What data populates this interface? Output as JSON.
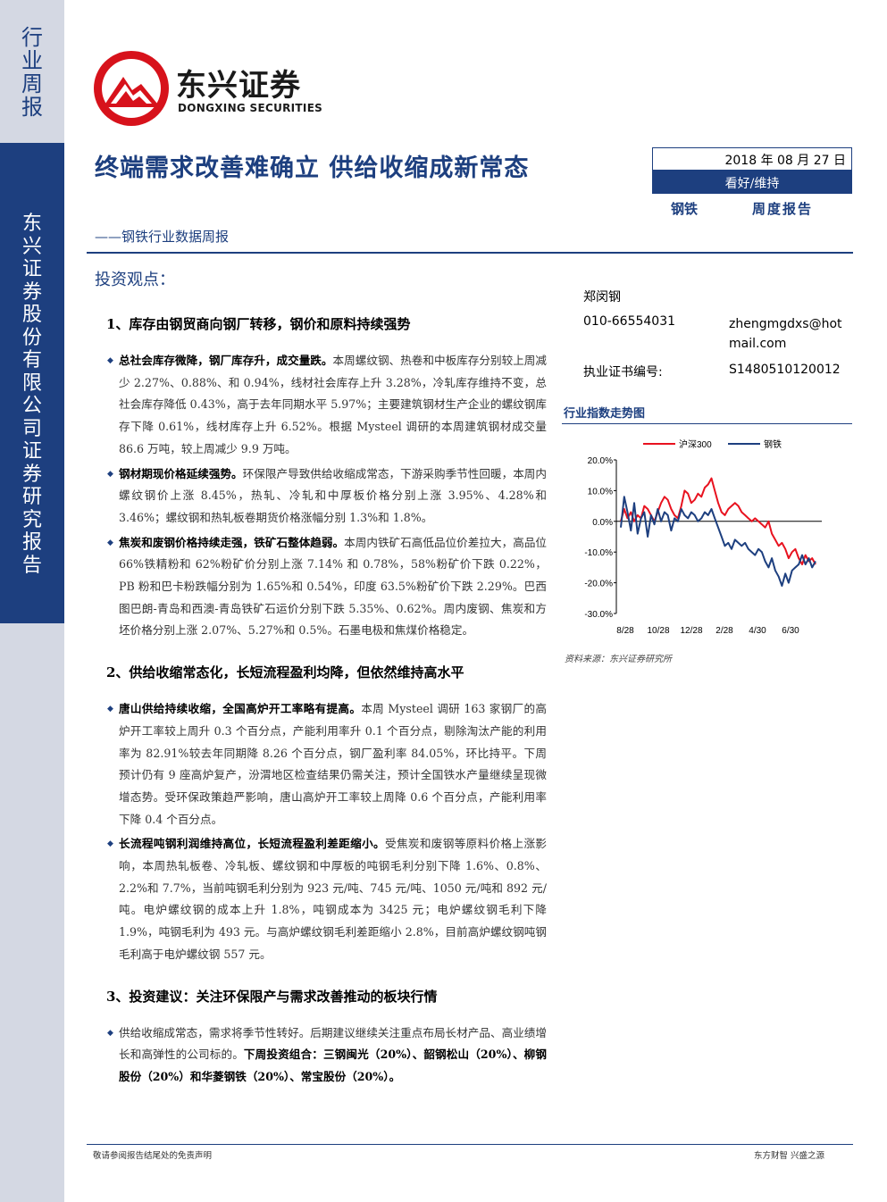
{
  "side": {
    "report_type_chars": [
      "行",
      "业",
      "周",
      "报"
    ],
    "firm_chars": [
      "东",
      "兴",
      "证",
      "券",
      "股",
      "份",
      "有",
      "限",
      "公",
      "司",
      "证",
      "券",
      "研",
      "究",
      "报",
      "告"
    ]
  },
  "logo": {
    "cn": "东兴证券",
    "en": "DONGXING SECURITIES"
  },
  "title": "终端需求改善难确立 供给收缩成新常态",
  "subtitle": "——钢铁行业数据周报",
  "date": "2018 年 08 月 27 日",
  "rating": "看好/维持",
  "industry": "钢铁",
  "report_type": "周度报告",
  "view_title": "投资观点：",
  "analyst": {
    "name": "郑闵钢",
    "phone": "010-66554031",
    "email": "zhengmgdxs@hotmail.com",
    "cert_label": "执业证书编号:",
    "cert_no": "S1480510120012"
  },
  "sections": [
    {
      "heading": "1、库存由钢贸商向钢厂转移，钢价和原料持续强势",
      "paras": [
        {
          "bold": "总社会库存微降，钢厂库存升，成交量跌。",
          "text": "本周螺纹钢、热卷和中板库存分别较上周减少 2.27%、0.88%、和 0.94%，线材社会库存上升 3.28%，冷轧库存维持不变，总社会库存降低 0.43%，高于去年同期水平 5.97%；主要建筑钢材生产企业的螺纹钢库存下降 0.61%，线材库存上升 6.52%。根据 Mysteel 调研的本周建筑钢材成交量 86.6 万吨，较上周减少 9.9 万吨。"
        },
        {
          "bold": "钢材期现价格延续强势。",
          "text": "环保限产导致供给收缩成常态，下游采购季节性回暖，本周内螺纹钢价上涨 8.45%，热轧、冷轧和中厚板价格分别上涨 3.95%、4.28%和 3.46%；螺纹钢和热轧板卷期货价格涨幅分别 1.3%和 1.8%。"
        },
        {
          "bold": "焦炭和废钢价格持续走强，铁矿石整体趋弱。",
          "text": "本周内铁矿石高低品位价差拉大，高品位 66%铁精粉和 62%粉矿价分别上涨 7.14% 和 0.78%，58%粉矿价下跌 0.22%，PB 粉和巴卡粉跌幅分别为 1.65%和 0.54%，印度 63.5%粉矿价下跌 2.29%。巴西图巴朗-青岛和西澳-青岛铁矿石运价分别下跌 5.35%、0.62%。周内废钢、焦炭和方坯价格分别上涨 2.07%、5.27%和 0.5%。石墨电极和焦煤价格稳定。"
        }
      ]
    },
    {
      "heading": "2、供给收缩常态化，长短流程盈利均降，但依然维持高水平",
      "paras": [
        {
          "bold": "唐山供给持续收缩，全国高炉开工率略有提高。",
          "text": "本周 Mysteel 调研 163 家钢厂的高炉开工率较上周升 0.3 个百分点，产能利用率升 0.1 个百分点，剔除淘汰产能的利用率为 82.91%较去年同期降 8.26 个百分点，钢厂盈利率 84.05%，环比持平。下周预计仍有 9 座高炉复产，汾渭地区检查结果仍需关注，预计全国铁水产量继续呈现微增态势。受环保政策趋严影响，唐山高炉开工率较上周降 0.6 个百分点，产能利用率下降 0.4 个百分点。"
        },
        {
          "bold": "长流程吨钢利润维持高位，长短流程盈利差距缩小。",
          "text": "受焦炭和废钢等原料价格上涨影响，本周热轧板卷、冷轧板、螺纹钢和中厚板的吨钢毛利分别下降 1.6%、0.8%、2.2%和 7.7%，当前吨钢毛利分别为 923 元/吨、745 元/吨、1050 元/吨和 892 元/吨。电炉螺纹钢的成本上升 1.8%，吨钢成本为 3425 元；电炉螺纹钢毛利下降 1.9%，吨钢毛利为 493 元。与高炉螺纹钢毛利差距缩小 2.8%，目前高炉螺纹钢吨钢毛利高于电炉螺纹钢 557 元。"
        }
      ]
    },
    {
      "heading": "3、投资建议：关注环保限产与需求改善推动的板块行情",
      "paras": [
        {
          "text": "供给收缩成常态，需求将季节性转好。后期建议继续关注重点布局长材产品、高业绩增长和高弹性的公司标的。",
          "bold_tail": "下周投资组合：三钢闽光（20%）、韶钢松山（20%）、柳钢股份（20%）和华菱钢铁（20%）、常宝股份（20%）。"
        }
      ]
    }
  ],
  "chart_data": {
    "type": "line",
    "title": "行业指数走势图",
    "source": "资料来源：东兴证券研究所",
    "x_ticks": [
      "8/28",
      "10/28",
      "12/28",
      "2/28",
      "4/30",
      "6/30"
    ],
    "y_ticks": [
      "20.0%",
      "10.0%",
      "0.0%",
      "-10.0%",
      "-20.0%",
      "-30.0%"
    ],
    "ylim": [
      -30,
      20
    ],
    "legend_position": "top",
    "series": [
      {
        "name": "沪深300",
        "color": "#e8121f",
        "values": [
          0,
          4,
          1,
          3,
          0,
          2,
          1,
          5,
          4,
          2,
          0,
          3,
          6,
          8,
          7,
          4,
          2,
          1,
          5,
          10,
          9,
          6,
          7,
          9,
          8,
          11,
          12,
          14,
          10,
          6,
          3,
          2,
          4,
          5,
          6,
          5,
          3,
          2,
          1,
          0,
          1,
          0,
          -1,
          -2,
          0,
          -4,
          -6,
          -8,
          -7,
          -9,
          -12,
          -10,
          -9,
          -12,
          -14,
          -11,
          -13,
          -12,
          -14
        ]
      },
      {
        "name": "钢铁",
        "color": "#1d3f7f",
        "values": [
          -2,
          8,
          3,
          -3,
          6,
          -4,
          1,
          3,
          -5,
          2,
          -1,
          4,
          0,
          3,
          2,
          -3,
          1,
          0,
          4,
          2,
          1,
          3,
          2,
          0,
          1,
          3,
          2,
          4,
          1,
          -2,
          -5,
          -8,
          -7,
          -9,
          -6,
          -7,
          -8,
          -7,
          -9,
          -10,
          -11,
          -9,
          -10,
          -13,
          -15,
          -12,
          -16,
          -18,
          -21,
          -17,
          -20,
          -16,
          -15,
          -14,
          -11,
          -14,
          -12,
          -15,
          -13
        ]
      }
    ]
  },
  "footer": {
    "left": "敬请参阅报告结尾处的免责声明",
    "right": "东方财智 兴盛之源"
  }
}
